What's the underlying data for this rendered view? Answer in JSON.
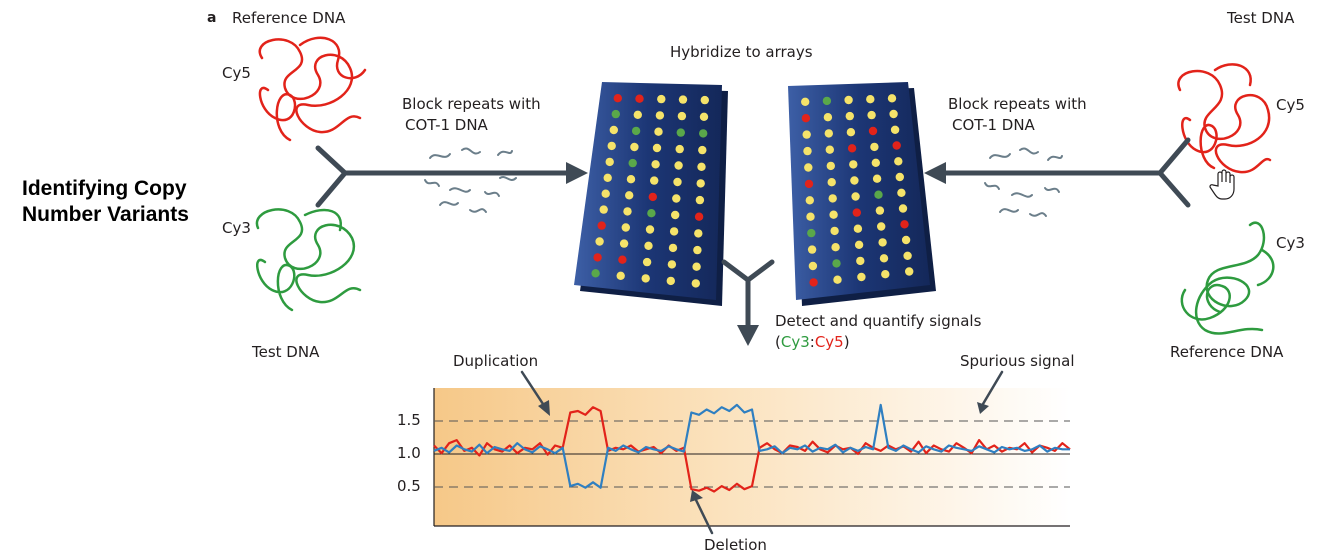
{
  "title": "Identifying Copy Number Variants",
  "panel_letter": "a",
  "left": {
    "reference_label": "Reference DNA",
    "test_label": "Test DNA",
    "cy5": "Cy5",
    "cy3": "Cy3",
    "block_label_line1": "Block repeats with",
    "block_label_line2": "COT-1 DNA"
  },
  "right": {
    "test_label": "Test DNA",
    "reference_label": "Reference DNA",
    "cy5": "Cy5",
    "cy3": "Cy3",
    "block_label_line1": "Block repeats with",
    "block_label_line2": "COT-1 DNA"
  },
  "center": {
    "hybridize_label": "Hybridize to arrays",
    "detect_label": "Detect and quantify signals",
    "ratio_open": "(",
    "ratio_cy3": "Cy3",
    "ratio_colon": ":",
    "ratio_cy5": "Cy5",
    "ratio_close": ")"
  },
  "plot": {
    "annotations": {
      "duplication": "Duplication",
      "deletion": "Deletion",
      "spurious": "Spurious signal"
    },
    "ticks": [
      "1.5",
      "1.0",
      "0.5"
    ]
  },
  "colors": {
    "cy5": "#e2231a",
    "cy3": "#2e9b3f",
    "cy3_trace": "#2f7fc1",
    "arrow": "#3f4a55",
    "array": "#1f3a7a"
  },
  "chart_data": {
    "type": "line",
    "ylim": [
      0,
      1.8
    ],
    "reference_lines": [
      1.5,
      1.0,
      0.5
    ],
    "series": [
      {
        "color": "#e2231a",
        "values": [
          1.05,
          0.95,
          1.08,
          1.12,
          0.98,
          1.02,
          0.92,
          1.08,
          1.0,
          0.97,
          1.05,
          0.95,
          1.02,
          1.0,
          1.08,
          0.93,
          1.05,
          1.02,
          1.48,
          1.5,
          1.45,
          1.55,
          1.5,
          0.98,
          1.02,
          1.0,
          1.05,
          0.97,
          1.0,
          1.03,
          0.95,
          1.05,
          0.98,
          1.02,
          0.48,
          0.46,
          0.5,
          0.45,
          0.52,
          0.47,
          0.55,
          0.48,
          0.52,
          1.02,
          1.08,
          1.0,
          0.95,
          1.05,
          1.03,
          0.98,
          1.1,
          1.0,
          0.96,
          1.05,
          1.0,
          1.02,
          0.94,
          1.08,
          1.02,
          0.98,
          1.05,
          1.0,
          1.04,
          0.97,
          1.1,
          0.95,
          1.05,
          1.0,
          0.97,
          1.08,
          1.02,
          0.95,
          1.12,
          1.0,
          1.05,
          0.97,
          1.02,
          1.0,
          1.08,
          0.96,
          1.05,
          1.02,
          0.98,
          1.08,
          1.0
        ]
      },
      {
        "color": "#2f7fc1",
        "values": [
          0.98,
          1.02,
          0.96,
          1.05,
          1.0,
          0.97,
          1.06,
          0.95,
          1.03,
          1.0,
          0.98,
          1.08,
          1.0,
          0.96,
          1.04,
          1.0,
          0.95,
          1.02,
          0.52,
          0.55,
          0.5,
          0.57,
          0.5,
          1.02,
          0.98,
          1.05,
          1.0,
          0.96,
          1.03,
          1.0,
          0.98,
          1.04,
          1.0,
          0.97,
          1.48,
          1.45,
          1.52,
          1.47,
          1.55,
          1.5,
          1.58,
          1.48,
          1.52,
          0.98,
          1.0,
          1.04,
          0.95,
          1.02,
          1.0,
          1.05,
          0.97,
          1.02,
          1.0,
          1.06,
          0.96,
          1.02,
          0.98,
          1.03,
          1.0,
          1.58,
          1.02,
          0.98,
          1.05,
          1.0,
          0.96,
          1.04,
          1.0,
          0.97,
          1.05,
          1.02,
          1.0,
          0.98,
          1.04,
          1.0,
          0.96,
          1.03,
          1.0,
          1.02,
          0.98,
          1.0,
          1.05,
          0.97,
          1.02,
          1.0,
          1.0
        ]
      }
    ]
  }
}
